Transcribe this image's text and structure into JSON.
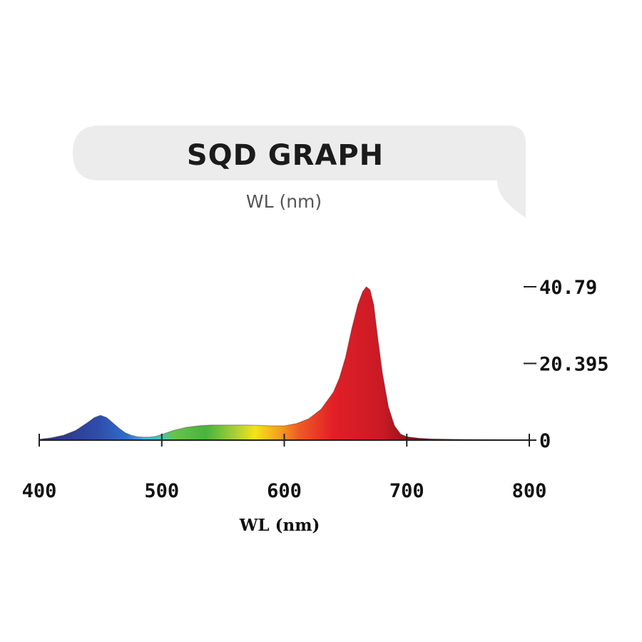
{
  "header": {
    "title": "SQD GRAPH",
    "subtitle": "WL (nm)",
    "banner_color": "#ececec"
  },
  "chart_data": {
    "type": "area",
    "title": "SQD GRAPH",
    "xlabel": "WL (nm)",
    "ylabel": "",
    "xlim": [
      400,
      800
    ],
    "ylim": [
      0,
      40.79
    ],
    "x_ticks": [
      "400",
      "500",
      "600",
      "700",
      "800"
    ],
    "y_ticks": [
      "40.79",
      "20.395",
      "0"
    ],
    "grid": false,
    "fill": "wavelength-spectrum-gradient",
    "series": [
      {
        "x": [
          400,
          410,
          420,
          430,
          440,
          445,
          450,
          455,
          460,
          465,
          470,
          475,
          480,
          485,
          490,
          495,
          500,
          510,
          520,
          530,
          540,
          550,
          560,
          570,
          580,
          590,
          600,
          610,
          620,
          630,
          640,
          645,
          650,
          655,
          660,
          664,
          667,
          670,
          673,
          676,
          680,
          685,
          690,
          695,
          700,
          710,
          720,
          740,
          760,
          780,
          800
        ],
        "y": [
          0.2,
          0.6,
          1.3,
          2.6,
          4.8,
          6.0,
          6.6,
          6.0,
          4.6,
          3.2,
          2.0,
          1.3,
          0.9,
          0.8,
          0.8,
          1.0,
          1.5,
          2.6,
          3.4,
          3.8,
          4.0,
          4.0,
          4.0,
          4.0,
          3.9,
          3.8,
          3.8,
          4.4,
          5.7,
          8.2,
          12.7,
          16.5,
          22.0,
          29.5,
          36.0,
          39.5,
          40.79,
          40.0,
          36.0,
          28.0,
          18.0,
          8.8,
          3.8,
          1.6,
          0.9,
          0.5,
          0.3,
          0.2,
          0.15,
          0.1,
          0.1
        ]
      }
    ]
  }
}
